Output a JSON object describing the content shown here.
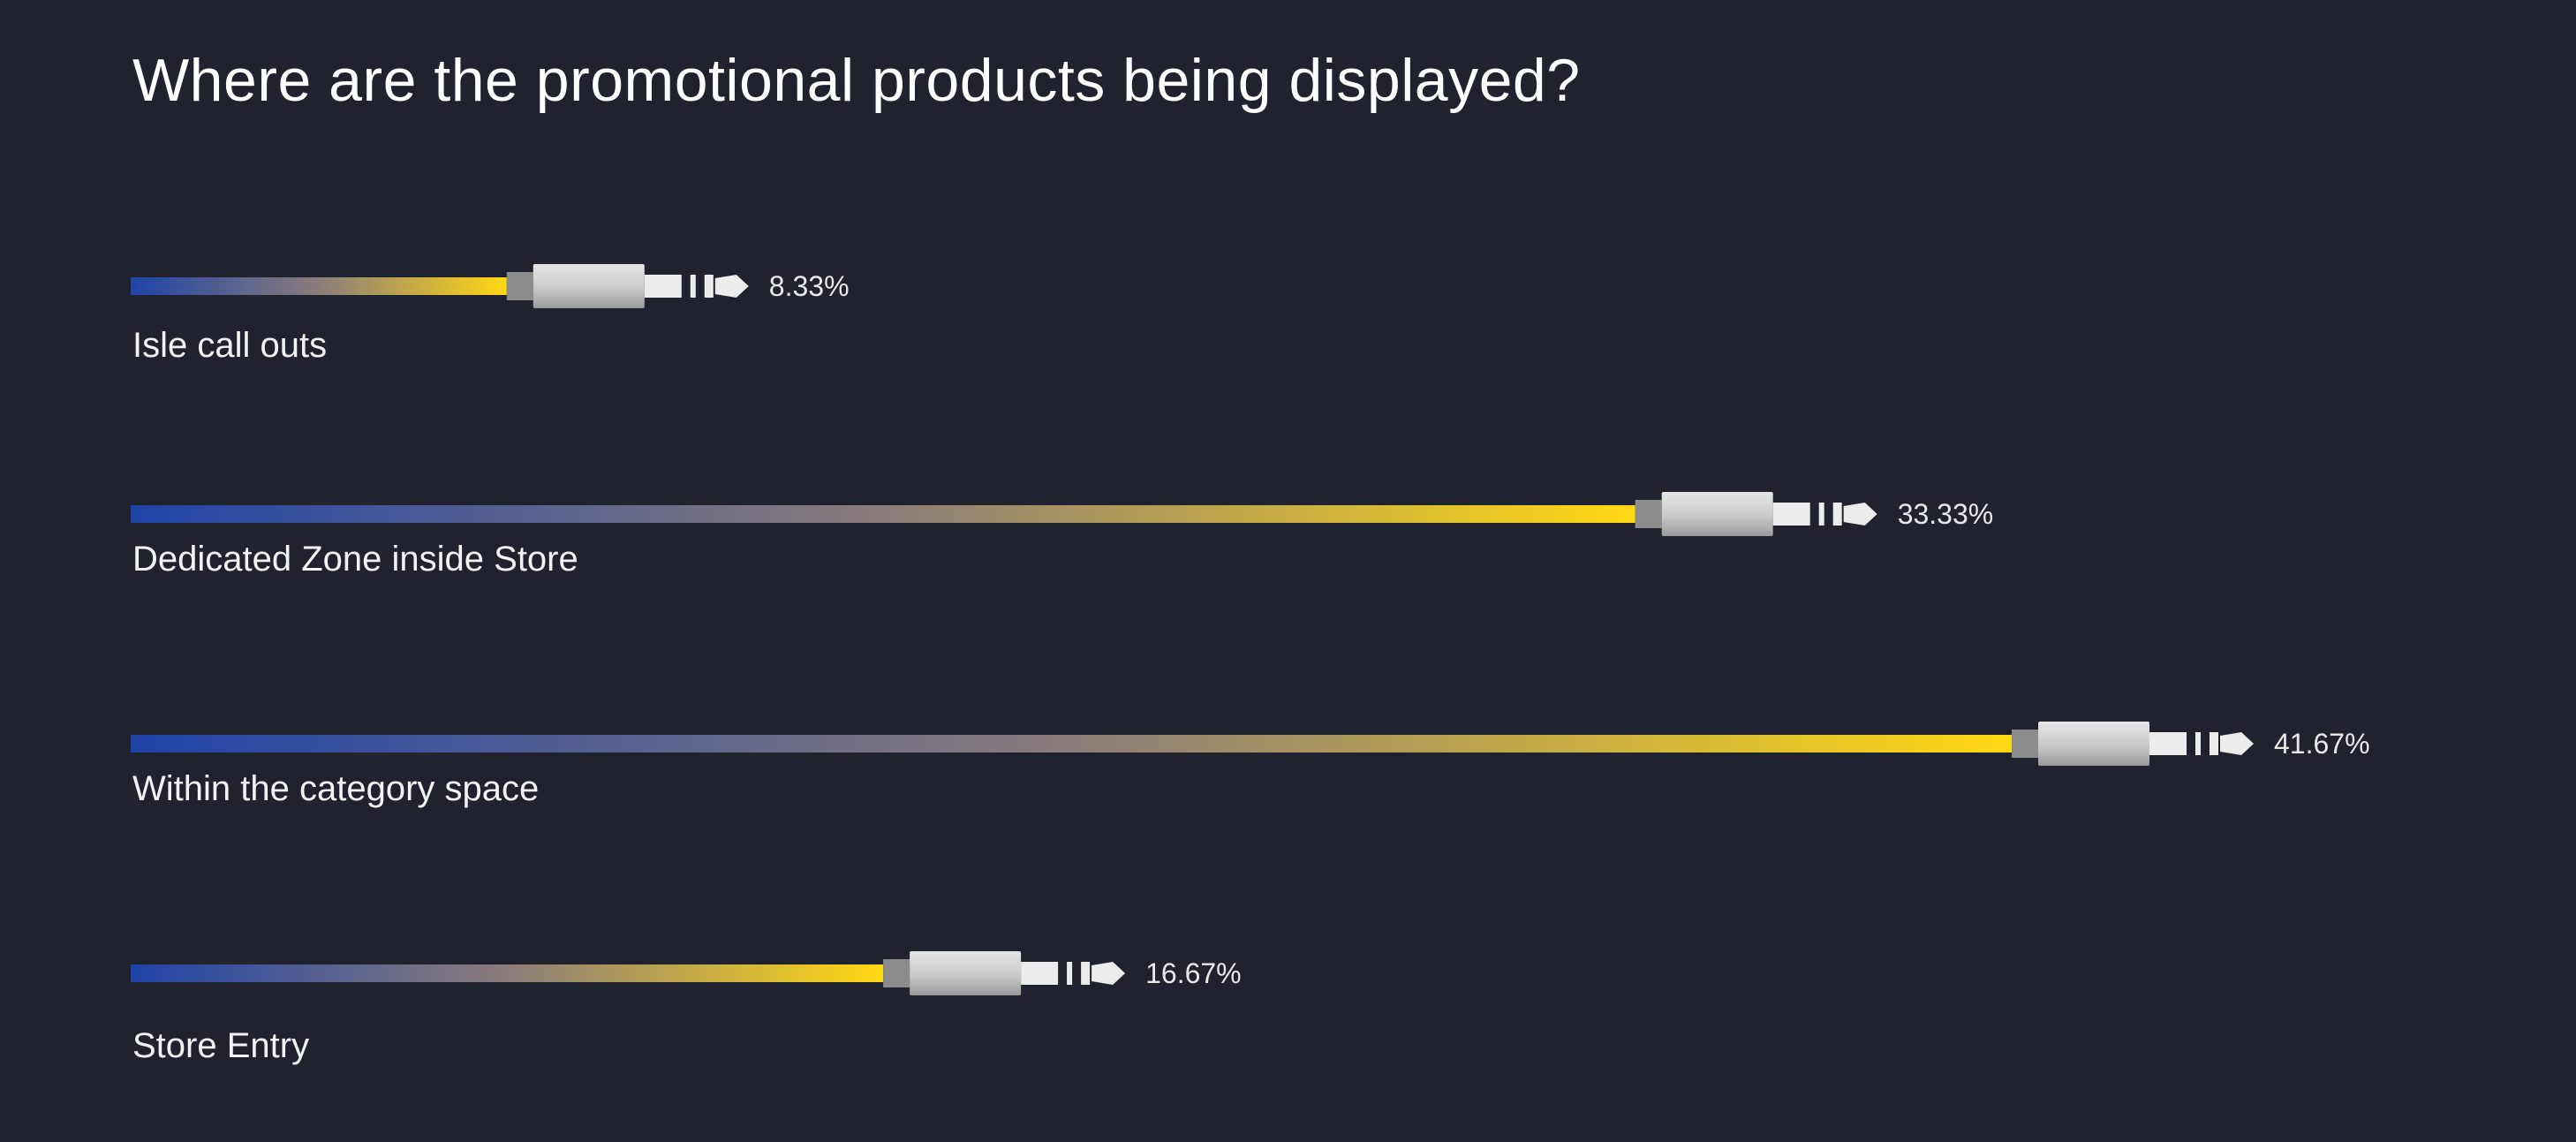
{
  "chart_data": {
    "type": "bar",
    "title": "Where are the promotional products being displayed?",
    "categories": [
      "Isle call outs",
      "Dedicated Zone inside Store",
      "Within the category space",
      "Store Entry"
    ],
    "values": [
      8.33,
      33.33,
      41.67,
      16.67
    ],
    "value_labels": [
      "8.33%",
      "33.33%",
      "41.67%",
      "16.67%"
    ],
    "xlim": [
      0,
      50
    ],
    "orientation": "horizontal",
    "grid": false,
    "legend": "none",
    "style": "audio-cable bars with gradient cord ending in a plug",
    "colors": {
      "background": "#20222e",
      "gradient_start": "#1f44a8",
      "gradient_mid": "#8a7c7a",
      "gradient_end": "#ffd814",
      "text": "#ffffff"
    }
  }
}
